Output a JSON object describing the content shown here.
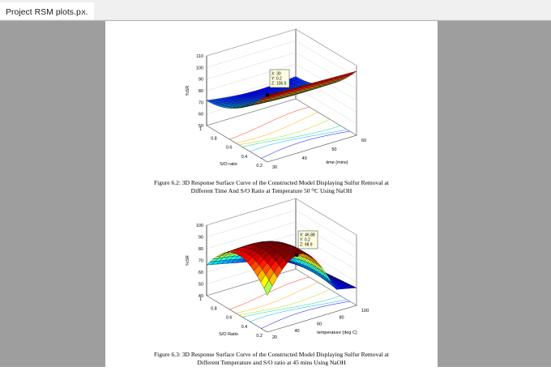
{
  "tab": {
    "title": "Project RSM plots.p...",
    "close": "×"
  },
  "figures": [
    {
      "zlabel": "%SR",
      "ylabel": "S/O ratio",
      "xlabel": "time (mins)",
      "zticks": [
        "110",
        "100",
        "90",
        "80",
        "70",
        "60",
        "50"
      ],
      "yticks": [
        "1",
        "0.8",
        "0.6",
        "0.4",
        "0.2"
      ],
      "xticks": [
        "30",
        "40",
        "50",
        "60"
      ],
      "datatip": [
        "X: 30",
        "Y: 0.2",
        "Z: 106.5"
      ],
      "caption": [
        "Figure 6.2: 3D Response Surface Curve of the Constructed Model Displaying Sulfur Removal at",
        "Different Time And S/O Ratio at Temperature 50 ",
        "O",
        "C Using NaOH"
      ]
    },
    {
      "zlabel": "%SR",
      "ylabel": "S/O Ratio",
      "xlabel": "temperature (deg C)",
      "zticks": [
        "100",
        "90",
        "80",
        "70",
        "60",
        "50",
        "40"
      ],
      "yticks": [
        "1",
        "0.8",
        "0.6",
        "0.4",
        "0.2"
      ],
      "xticks": [
        "20",
        "40",
        "60",
        "80",
        "100"
      ],
      "datatip": [
        "X: 46.88",
        "Y: 0.2",
        "Z: 98.9"
      ],
      "caption": [
        "Figure 6.3: 3D Response Surface Curve of the Constructed Model Displaying Sulfur Removal at",
        "Different Temperature and S/O ratio at 45 mins Using NaOH"
      ]
    }
  ]
}
